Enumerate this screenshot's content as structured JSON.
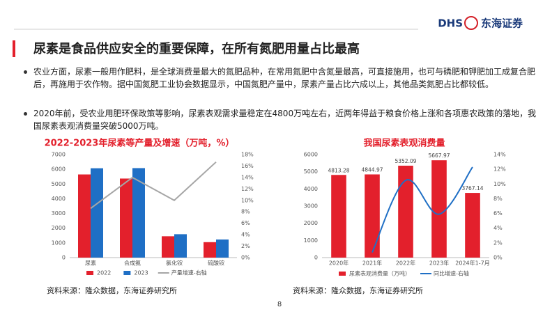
{
  "logo": {
    "brand": "DHS",
    "name": "东海证券"
  },
  "header": {
    "title": "尿素是食品供应安全的重要保障，在所有氮肥用量占比最高"
  },
  "bullets": [
    "农业方面，尿素一般用作肥料，是全球消费量最大的氮肥品种，在常用氮肥中含氮量最高，可直接施用，也可与磷肥和钾肥加工成复合肥后，再施用于农作物。据中国氮肥工业协会数据显示，中国氮肥产量中，尿素产量占比六成以上，其他品类氮肥占比都较低。",
    "2020年前，受农业用肥环保政策等影响，尿素表观需求量稳定在4800万吨左右，近两年得益于粮食价格上涨和各项惠农政策的落地，我国尿素表观消费量突破5000万吨。"
  ],
  "chart_data": [
    {
      "type": "bar",
      "title": "2022-2023年尿素等产量及增速（万吨，%）",
      "categories": [
        "尿素",
        "合成氨",
        "氯化铵",
        "硫酸铵"
      ],
      "series": [
        {
          "name": "2022",
          "color": "#e3202c",
          "values": [
            5650,
            5370,
            1450,
            1050
          ]
        },
        {
          "name": "2023",
          "color": "#1f6fc5",
          "values": [
            6070,
            6080,
            1590,
            1230
          ]
        },
        {
          "name": "产量增速-右轴",
          "color": "#a6a6a6",
          "axis": "y2",
          "values": [
            8.6,
            14.0,
            10.0,
            16.7
          ]
        }
      ],
      "ylim": [
        0,
        7000
      ],
      "yticks": [
        0,
        1000,
        2000,
        3000,
        4000,
        5000,
        6000,
        7000
      ],
      "y2lim": [
        0,
        18
      ],
      "y2ticks": [
        {
          "value": 0,
          "label": "0%"
        },
        {
          "value": 2,
          "label": "2%"
        },
        {
          "value": 4,
          "label": "4%"
        },
        {
          "value": 6,
          "label": "6%"
        },
        {
          "value": 8,
          "label": "8%"
        },
        {
          "value": 10,
          "label": "10%"
        },
        {
          "value": 12,
          "label": "12%"
        },
        {
          "value": 14,
          "label": "14%"
        },
        {
          "value": 16,
          "label": "16%"
        },
        {
          "value": 18,
          "label": "18%"
        }
      ],
      "grid": false,
      "data_labels": false,
      "smooth": false
    },
    {
      "type": "bar",
      "title": "我国尿素表观消费量",
      "categories": [
        "2020年",
        "2021年",
        "2022年",
        "2023年",
        "2024年1-7月"
      ],
      "series": [
        {
          "name": "尿素表观消费量（万吨）",
          "color": "#e3202c",
          "values": [
            4813.28,
            4844.97,
            5352.09,
            5667.97,
            3767.14
          ]
        },
        {
          "name": "同比增速-右轴",
          "color": "#1f6fc5",
          "axis": "y2",
          "values": [
            null,
            0.7,
            10.5,
            5.9,
            12.3
          ]
        }
      ],
      "ylim": [
        0,
        6000
      ],
      "yticks": [
        0,
        1000,
        2000,
        3000,
        4000,
        5000,
        6000
      ],
      "y2lim": [
        0,
        14
      ],
      "y2ticks": [
        {
          "value": 0,
          "label": "0%"
        },
        {
          "value": 2,
          "label": "2%"
        },
        {
          "value": 4,
          "label": "4%"
        },
        {
          "value": 6,
          "label": "6%"
        },
        {
          "value": 8,
          "label": "8%"
        },
        {
          "value": 10,
          "label": "10%"
        },
        {
          "value": 12,
          "label": "12%"
        },
        {
          "value": 14,
          "label": "14%"
        }
      ],
      "grid": false,
      "data_labels": true,
      "smooth": true
    }
  ],
  "sources": [
    "资料来源：隆众数据，东海证券研究所",
    "资料来源：隆众数据，东海证券研究所"
  ],
  "page_number": 8
}
